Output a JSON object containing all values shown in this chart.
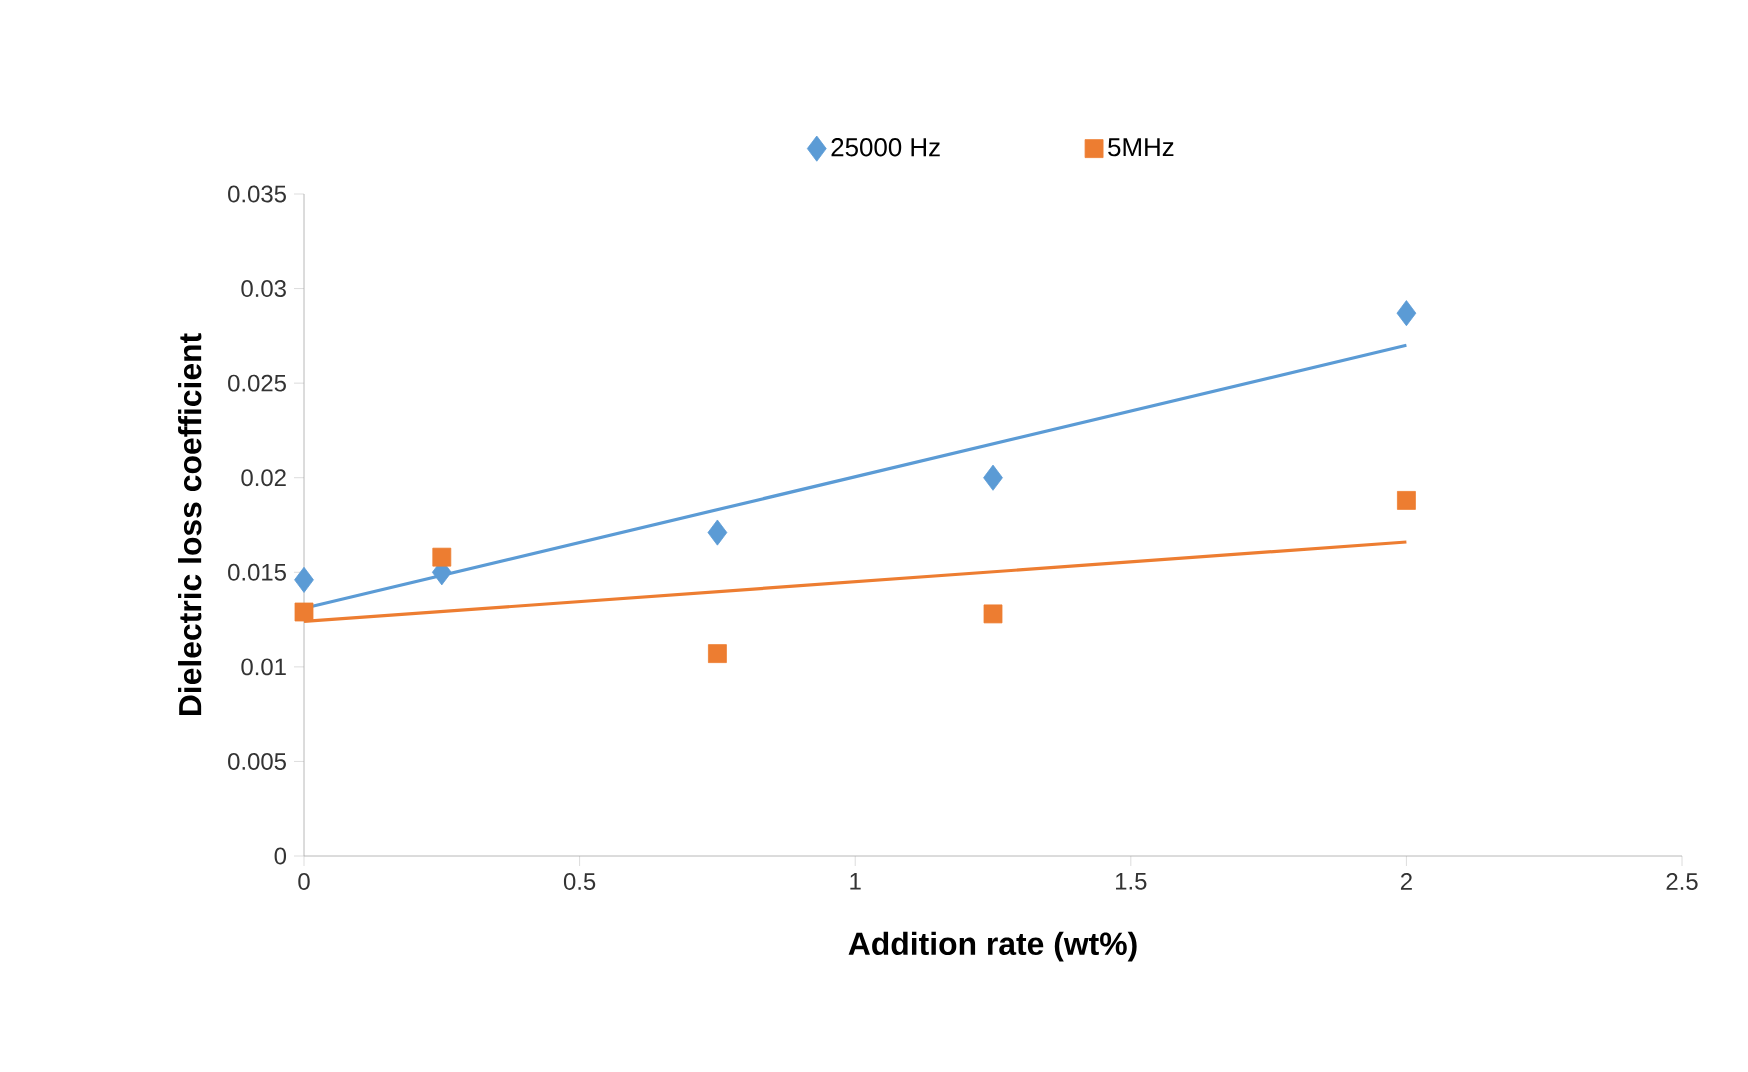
{
  "chart_data": {
    "type": "scatter",
    "xlabel": "Addition rate (wt%)",
    "ylabel": "Dielectric loss coefficient",
    "xlim": [
      0,
      2.5
    ],
    "xticks": [
      0,
      0.5,
      1,
      1.5,
      2,
      2.5
    ],
    "ylim": [
      0,
      0.035
    ],
    "yticks": [
      0,
      0.005,
      0.01,
      0.015,
      0.02,
      0.025,
      0.03,
      0.035
    ],
    "grid": false,
    "legend": "top",
    "series": [
      {
        "name": "25000 Hz",
        "marker": "diamond",
        "color": "#5b9bd5",
        "x": [
          0,
          0.25,
          0.75,
          1.25,
          2
        ],
        "values": [
          0.0146,
          0.015,
          0.0171,
          0.02,
          0.0287
        ]
      },
      {
        "name": "5MHz",
        "marker": "square",
        "color": "#ed7d31",
        "x": [
          0,
          0.25,
          0.75,
          1.25,
          2
        ],
        "values": [
          0.0129,
          0.0158,
          0.0107,
          0.0128,
          0.0188
        ]
      },
      {
        "type": "line",
        "line_style": "solid",
        "color": "#5b9bd5",
        "x": [
          0,
          2
        ],
        "values": [
          0.0131,
          0.027
        ]
      },
      {
        "type": "line",
        "line_style": "solid",
        "color": "#ed7d31",
        "x": [
          0,
          2
        ],
        "values": [
          0.0124,
          0.0166
        ]
      }
    ]
  }
}
